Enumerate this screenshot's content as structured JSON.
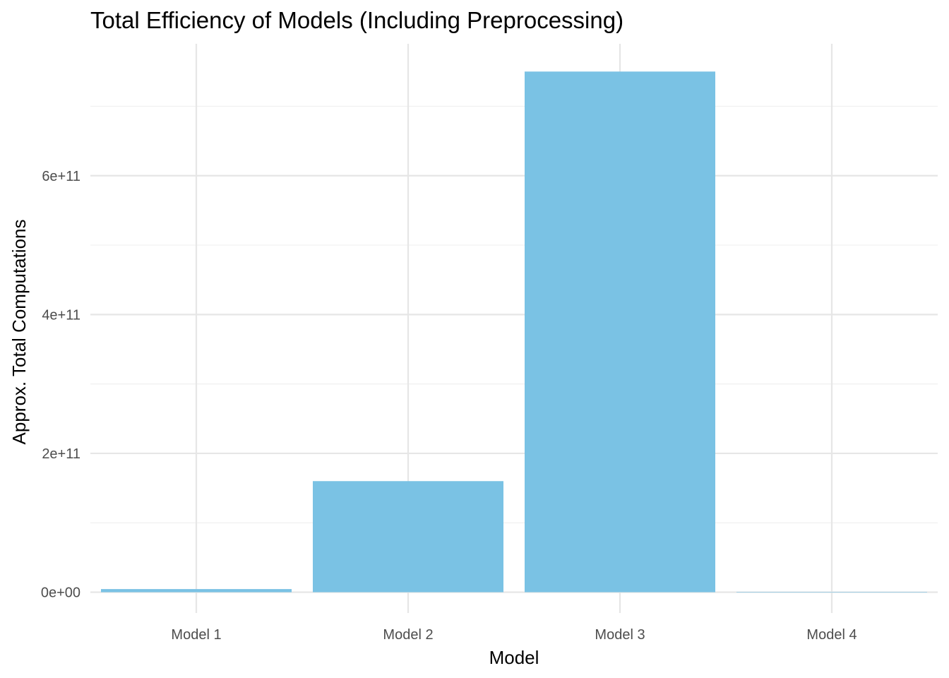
{
  "chart_data": {
    "type": "bar",
    "title": "Total Efficiency of Models (Including Preprocessing)",
    "xlabel": "Model",
    "ylabel": "Approx. Total Computations",
    "categories": [
      "Model 1",
      "Model 2",
      "Model 3",
      "Model 4"
    ],
    "values": [
      4500000000,
      160000000000,
      750000000000,
      100000000
    ],
    "ylim": [
      -30000000000,
      790000000000
    ],
    "yticks": [
      0,
      200000000000,
      400000000000,
      600000000000
    ],
    "ytick_labels": [
      "0e+00",
      "2e+11",
      "4e+11",
      "6e+11"
    ],
    "y_minor_ticks": [
      100000000000,
      300000000000,
      500000000000,
      700000000000
    ],
    "grid": true,
    "legend": "none",
    "colors": {
      "bar": "#7AC2E4",
      "grid_major": "#E6E6E6",
      "grid_minor": "#F0F0F0",
      "background": "#FFFFFF"
    }
  }
}
